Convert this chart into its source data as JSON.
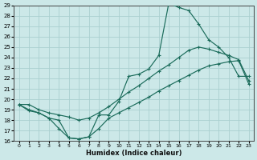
{
  "xlabel": "Humidex (Indice chaleur)",
  "bg_color": "#cce8e8",
  "grid_color": "#aad0d0",
  "line_color": "#1a6b5a",
  "x": [
    0,
    1,
    2,
    3,
    4,
    5,
    6,
    7,
    8,
    9,
    10,
    11,
    12,
    13,
    14,
    15,
    16,
    17,
    18,
    19,
    20,
    21,
    22,
    23
  ],
  "y_top": [
    19.5,
    19.0,
    18.7,
    18.2,
    17.2,
    16.3,
    16.2,
    16.4,
    18.5,
    18.5,
    19.8,
    22.2,
    22.4,
    22.9,
    24.2,
    29.2,
    28.8,
    28.5,
    27.2,
    25.7,
    25.0,
    24.0,
    22.2,
    22.2
  ],
  "y_mid": [
    19.5,
    19.5,
    19.0,
    18.7,
    18.5,
    18.3,
    18.0,
    18.2,
    18.7,
    19.3,
    20.0,
    20.7,
    21.3,
    22.0,
    22.7,
    23.3,
    24.0,
    24.7,
    25.0,
    24.8,
    24.5,
    24.2,
    23.8,
    21.8
  ],
  "y_bot": [
    19.5,
    18.9,
    18.7,
    18.2,
    18.0,
    16.3,
    16.2,
    16.4,
    17.2,
    18.2,
    18.7,
    19.2,
    19.7,
    20.2,
    20.8,
    21.3,
    21.8,
    22.3,
    22.8,
    23.2,
    23.4,
    23.6,
    23.7,
    21.5
  ],
  "ylim": [
    16,
    29
  ],
  "yticks": [
    16,
    17,
    18,
    19,
    20,
    21,
    22,
    23,
    24,
    25,
    26,
    27,
    28,
    29
  ],
  "xticks": [
    0,
    1,
    2,
    3,
    4,
    5,
    6,
    7,
    8,
    9,
    10,
    11,
    12,
    13,
    14,
    15,
    16,
    17,
    18,
    19,
    20,
    21,
    22,
    23
  ]
}
